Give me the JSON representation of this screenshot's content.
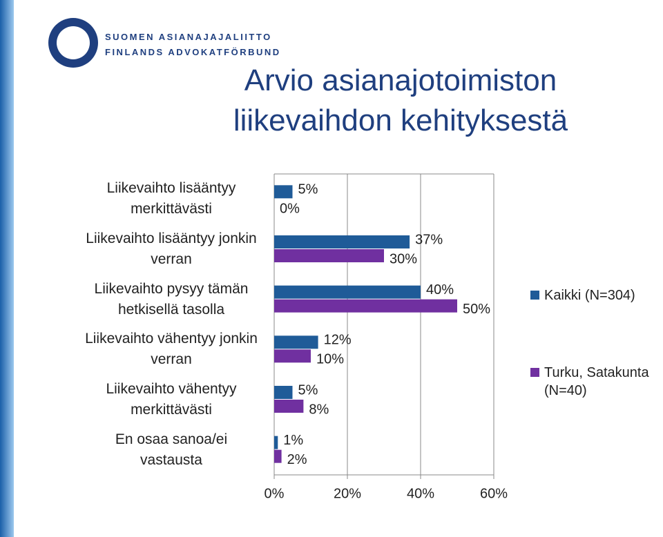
{
  "header": {
    "org_fi": "SUOMEN ASIANAJAJALIITTO",
    "org_sv": "FINLANDS ADVOKATFÖRBUND"
  },
  "chart_data": {
    "type": "hbar",
    "title": "Arvio asianajotoimiston liikevaihdon kehityksestä",
    "categories": [
      "Liikevaihto lisääntyy merkittävästi",
      "Liikevaihto lisääntyy jonkin verran",
      "Liikevaihto pysyy tämän hetkisellä tasolla",
      "Liikevaihto vähentyy jonkin verran",
      "Liikevaihto vähentyy merkittävästi",
      "En osaa sanoa/ei vastausta"
    ],
    "series": [
      {
        "name": "Kaikki (N=304)",
        "color": "#1f5b98",
        "values": [
          5,
          37,
          40,
          12,
          5,
          1
        ],
        "value_labels": [
          "5%",
          "37%",
          "40%",
          "12%",
          "5%",
          "1%"
        ]
      },
      {
        "name": "Turku, Satakunta (N=40)",
        "color": "#7030a0",
        "values": [
          0,
          30,
          50,
          10,
          8,
          2
        ],
        "value_labels": [
          "0%",
          "30%",
          "50%",
          "10%",
          "8%",
          "2%"
        ]
      }
    ],
    "xlim": [
      0,
      60
    ],
    "xticks": [
      {
        "value": 0,
        "label": "0%"
      },
      {
        "value": 20,
        "label": "20%"
      },
      {
        "value": 40,
        "label": "40%"
      },
      {
        "value": 60,
        "label": "60%"
      }
    ],
    "grid": true,
    "legend": "right"
  }
}
